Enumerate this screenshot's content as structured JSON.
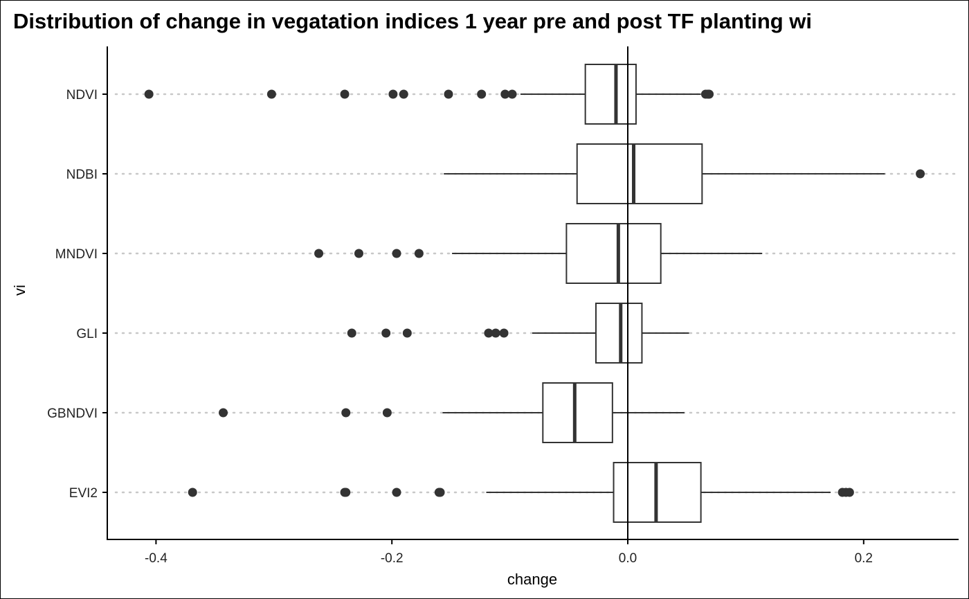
{
  "chart_data": {
    "type": "box",
    "title": "Distribution of change in vegatation indices 1 year pre and post TF planting wi",
    "xlabel": "change",
    "ylabel": "vi",
    "xlim": [
      -0.44,
      0.28
    ],
    "x_ticks": [
      -0.4,
      -0.2,
      0.0,
      0.2
    ],
    "x_tick_labels": [
      "-0.4",
      "-0.2",
      "0.0",
      "0.2"
    ],
    "reference_line_x": 0,
    "categories": [
      "NDVI",
      "NDBI",
      "MNDVI",
      "GLI",
      "GBNDVI",
      "EVI2"
    ],
    "boxes": [
      {
        "name": "NDVI",
        "whisker_low": -0.091,
        "q1": -0.036,
        "median": -0.01,
        "q3": 0.007,
        "whisker_high": 0.062,
        "outliers": [
          -0.406,
          -0.302,
          -0.24,
          -0.199,
          -0.19,
          -0.152,
          -0.124,
          -0.104,
          -0.098,
          0.066,
          0.068,
          0.069
        ]
      },
      {
        "name": "NDBI",
        "whisker_low": -0.156,
        "q1": -0.043,
        "median": 0.005,
        "q3": 0.063,
        "whisker_high": 0.218,
        "outliers": [
          0.248
        ]
      },
      {
        "name": "MNDVI",
        "whisker_low": -0.149,
        "q1": -0.052,
        "median": -0.008,
        "q3": 0.028,
        "whisker_high": 0.114,
        "outliers": [
          -0.262,
          -0.228,
          -0.196,
          -0.177
        ]
      },
      {
        "name": "GLI",
        "whisker_low": -0.081,
        "q1": -0.027,
        "median": -0.006,
        "q3": 0.012,
        "whisker_high": 0.052,
        "outliers": [
          -0.234,
          -0.205,
          -0.187,
          -0.118,
          -0.112,
          -0.105
        ]
      },
      {
        "name": "GBNDVI",
        "whisker_low": -0.157,
        "q1": -0.072,
        "median": -0.045,
        "q3": -0.013,
        "whisker_high": 0.048,
        "outliers": [
          -0.343,
          -0.239,
          -0.204
        ]
      },
      {
        "name": "EVI2",
        "whisker_low": -0.12,
        "q1": -0.012,
        "median": 0.024,
        "q3": 0.062,
        "whisker_high": 0.172,
        "outliers": [
          -0.369,
          -0.24,
          -0.239,
          -0.196,
          -0.16,
          -0.159,
          0.182,
          0.185,
          0.188
        ]
      }
    ],
    "grid": "dotted horizontal lines per category",
    "legend": "none",
    "colors": {
      "box_stroke": "#333333",
      "point": "#333333",
      "grid": "#c8c8c8",
      "axis": "#000000"
    }
  }
}
